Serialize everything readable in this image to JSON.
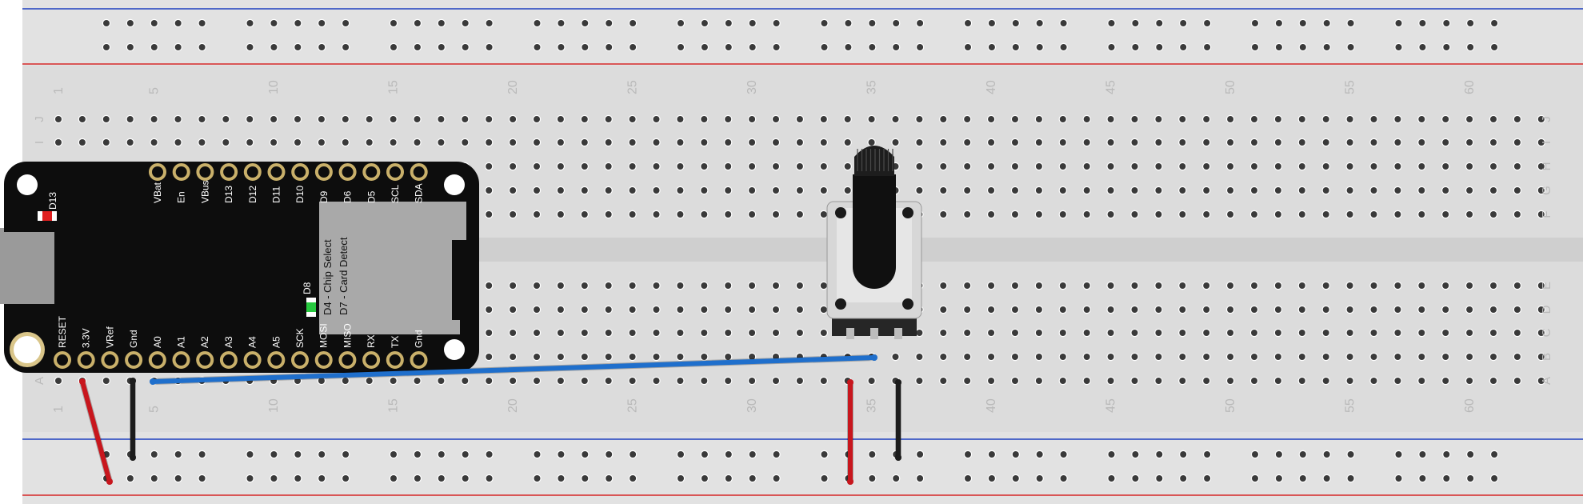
{
  "breadboard": {
    "column_numbers": [
      "1",
      "5",
      "10",
      "15",
      "20",
      "25",
      "30",
      "35",
      "40",
      "45",
      "50",
      "55",
      "60"
    ],
    "rows_top": [
      "J",
      "I",
      "H",
      "G",
      "F"
    ],
    "rows_bottom": [
      "E",
      "D",
      "C",
      "B",
      "A"
    ],
    "colors": {
      "board": "#dcdcdc",
      "hole": "#3a3a3a",
      "rail_red": "#d62828",
      "rail_blue": "#1e3fbf",
      "label": "#b9b9b9"
    }
  },
  "feather": {
    "led_top_label": "D13",
    "led_bottom_label": "D8",
    "top_pins": [
      "VBat",
      "En",
      "VBus",
      "D13",
      "D12",
      "D11",
      "D10",
      "D9",
      "D6",
      "D5",
      "SCL",
      "SDA"
    ],
    "bottom_pins": [
      "RESET",
      "3.3V",
      "VRef",
      "Gnd",
      "A0",
      "A1",
      "A2",
      "A3",
      "A4",
      "A5",
      "SCK",
      "MOSI",
      "MISO",
      "RX",
      "TX",
      "Gnd"
    ],
    "sd_text_1": "D4 - Chip Select",
    "sd_text_2": "D7 - Card Detect",
    "colors": {
      "body": "#0d0d0d",
      "pin_ring": "#c9b06a",
      "sd": "#a9a9a9",
      "usb": "#9a9a9a"
    }
  },
  "potentiometer": {
    "colors": {
      "base": "#d7d7d7",
      "knob": "#101010"
    }
  },
  "wires": {
    "colors": {
      "red": "#c8161d",
      "black": "#1c1c1c",
      "blue": "#1f6fcc"
    }
  }
}
